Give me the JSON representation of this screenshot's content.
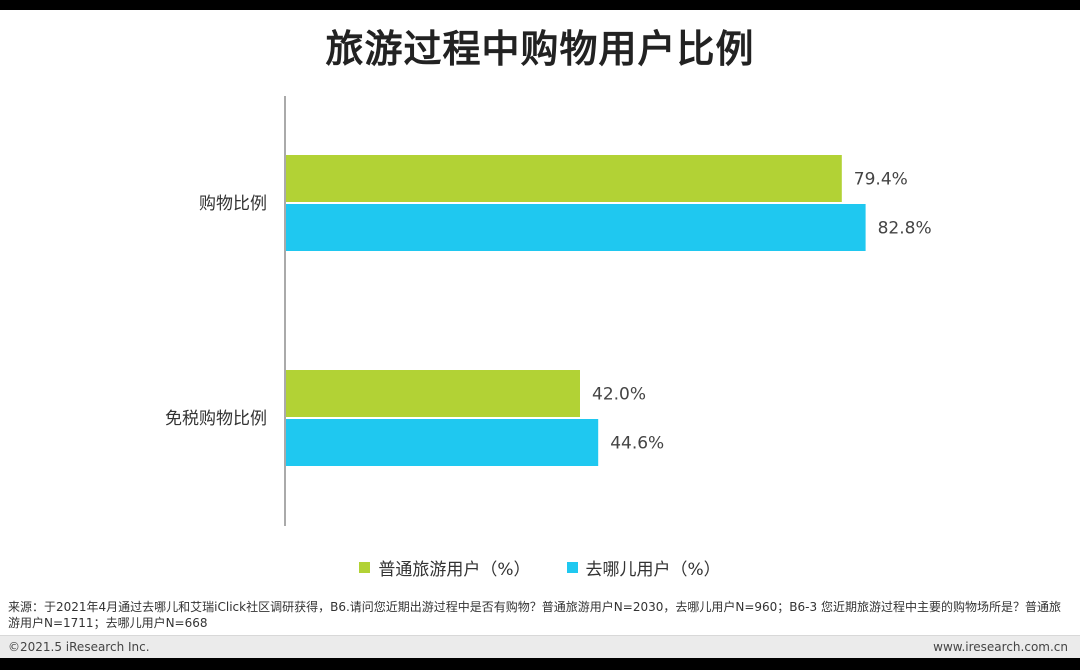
{
  "title": "旅游过程中购物用户比例",
  "source_note": "来源：于2021年4月通过去哪儿和艾瑞iClick社区调研获得，B6.请问您近期出游过程中是否有购物？普通旅游用户N=2030，去哪儿用户N=960；B6-3 您近期旅游过程中主要的购物场所是？普通旅游用户N=1711；去哪儿用户N=668",
  "footer": {
    "copyright": "©2021.5 iResearch Inc.",
    "website": "www.iresearch.com.cn"
  },
  "chart_data": {
    "type": "bar",
    "orientation": "horizontal",
    "title": "旅游过程中购物用户比例",
    "xlabel": "",
    "ylabel": "",
    "categories": [
      "购物比例",
      "免税购物比例"
    ],
    "series": [
      {
        "name": "普通旅游用户（%）",
        "values": [
          79.4,
          42.0
        ],
        "labels": [
          "79.4%",
          "42.0%"
        ],
        "color": "#b2d235"
      },
      {
        "name": "去哪儿用户（%）",
        "values": [
          82.8,
          44.6
        ],
        "labels": [
          "82.8%",
          "44.6%"
        ],
        "color": "#1fc8f0"
      }
    ],
    "xlim": [
      0,
      100
    ],
    "grid": false,
    "legend_position": "bottom"
  }
}
